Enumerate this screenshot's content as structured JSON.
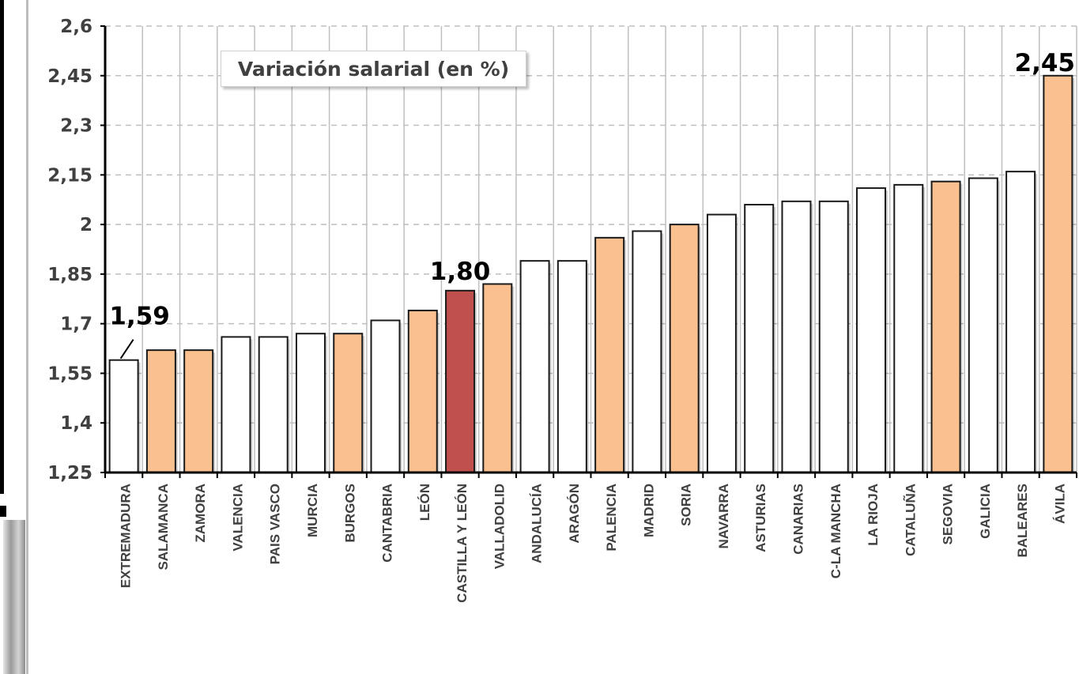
{
  "chart_data": {
    "type": "bar",
    "title": "Variación salarial (en %)",
    "xlabel": "",
    "ylabel": "",
    "ylim": [
      1.25,
      2.6
    ],
    "y_ticks": [
      "1,25",
      "1,4",
      "1,55",
      "1,7",
      "1,85",
      "2",
      "2,15",
      "2,3",
      "2,45",
      "2,6"
    ],
    "y_tick_values": [
      1.25,
      1.4,
      1.55,
      1.7,
      1.85,
      2.0,
      2.15,
      2.3,
      2.45,
      2.6
    ],
    "grid": true,
    "categories": [
      "EXTREMADURA",
      "SALAMANCA",
      "ZAMORA",
      "VALENCIA",
      "PAIS VASCO",
      "MURCIA",
      "BURGOS",
      "CANTABRIA",
      "LEÓN",
      "CASTILLA Y LEÓN",
      "VALLADOLID",
      "ANDALUCÍA",
      "ARAGÓN",
      "PALENCIA",
      "MADRID",
      "SORIA",
      "NAVARRA",
      "ASTURIAS",
      "CANARIAS",
      "C-LA MANCHA",
      "LA RIOJA",
      "CATALUÑA",
      "SEGOVIA",
      "GALICIA",
      "BALEARES",
      "ÁVILA"
    ],
    "values": [
      1.59,
      1.62,
      1.62,
      1.66,
      1.66,
      1.67,
      1.67,
      1.71,
      1.74,
      1.8,
      1.82,
      1.89,
      1.89,
      1.96,
      1.98,
      2.0,
      2.03,
      2.06,
      2.07,
      2.07,
      2.11,
      2.12,
      2.13,
      2.14,
      2.16,
      2.45
    ],
    "bar_group": [
      "other",
      "cyl-province",
      "cyl-province",
      "other",
      "other",
      "other",
      "cyl-province",
      "other",
      "cyl-province",
      "cyl-total",
      "cyl-province",
      "other",
      "other",
      "cyl-province",
      "other",
      "cyl-province",
      "other",
      "other",
      "other",
      "other",
      "other",
      "other",
      "cyl-province",
      "other",
      "other",
      "cyl-province"
    ],
    "colors": {
      "other": "#ffffff",
      "cyl-province": "#fac090",
      "cyl-total": "#c0504d",
      "outline": "#1a1a1a",
      "grid": "#bfbfbf"
    },
    "data_labels": [
      {
        "category": "EXTREMADURA",
        "text": "1,59"
      },
      {
        "category": "CASTILLA Y LEÓN",
        "text": "1,80"
      },
      {
        "category": "ÁVILA",
        "text": "2,45"
      }
    ]
  }
}
